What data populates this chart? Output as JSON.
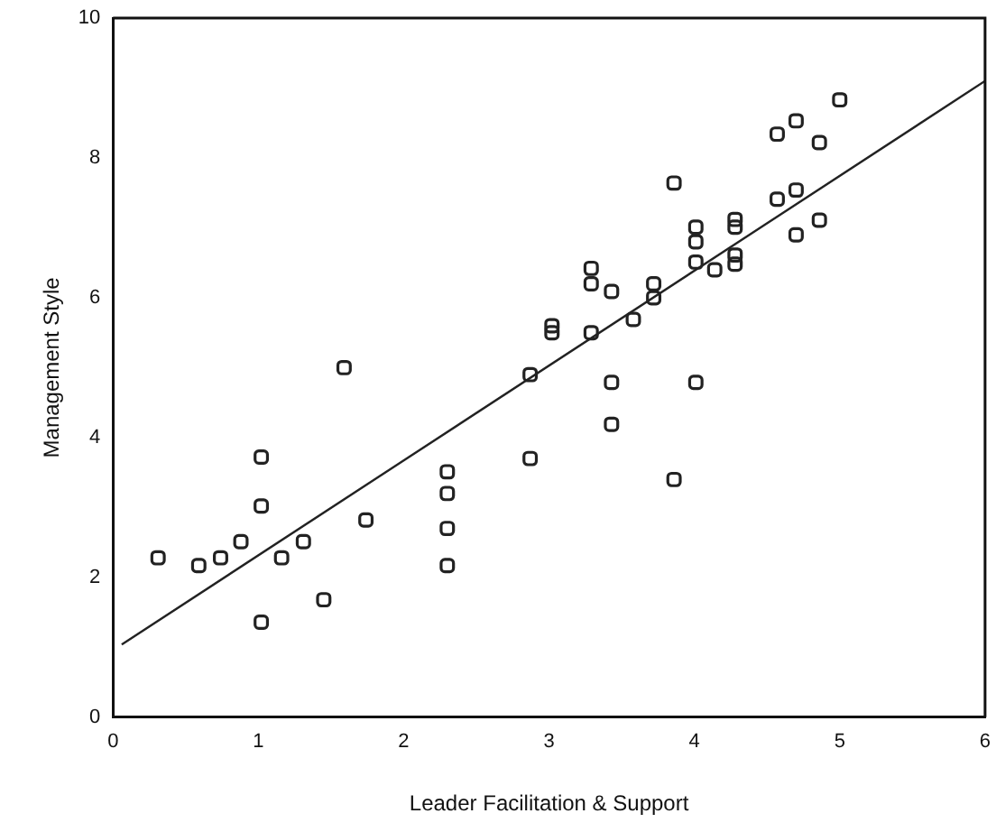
{
  "chart_data": {
    "type": "scatter",
    "xlabel": "Leader Facilitation & Support",
    "ylabel": "Management Style",
    "xlim": [
      0,
      6
    ],
    "xticks": [
      0,
      1,
      2,
      3,
      4,
      5,
      6
    ],
    "ylim": [
      0,
      10
    ],
    "yticks": [
      0,
      2,
      4,
      6,
      8,
      10
    ],
    "grid": false,
    "legend": false,
    "marker": "square",
    "series": [
      {
        "type": "scatter",
        "color": "#222222",
        "x": [
          0.31,
          0.59,
          0.74,
          0.88,
          1.02,
          1.02,
          1.02,
          1.16,
          1.31,
          1.45,
          1.59,
          1.74,
          2.3,
          2.3,
          2.3,
          2.3,
          2.87,
          2.87,
          3.02,
          3.02,
          3.29,
          3.29,
          3.29,
          3.43,
          3.43,
          3.43,
          3.58,
          3.72,
          3.72,
          3.86,
          3.86,
          4.01,
          4.01,
          4.01,
          4.01,
          4.14,
          4.28,
          4.28,
          4.28,
          4.28,
          4.57,
          4.57,
          4.7,
          4.7,
          4.7,
          4.86,
          4.86,
          5.0
        ],
        "values": [
          2.28,
          2.17,
          2.28,
          2.51,
          3.72,
          3.02,
          1.36,
          2.28,
          2.51,
          1.68,
          5.0,
          2.82,
          3.51,
          3.2,
          2.7,
          2.17,
          4.9,
          3.7,
          5.5,
          5.6,
          5.5,
          6.42,
          6.2,
          6.09,
          4.79,
          4.19,
          5.69,
          6.2,
          6.0,
          7.64,
          3.4,
          7.01,
          6.8,
          6.51,
          4.79,
          6.4,
          7.12,
          7.01,
          6.61,
          6.48,
          8.34,
          7.41,
          8.53,
          7.54,
          6.9,
          8.22,
          7.11,
          8.83
        ]
      },
      {
        "type": "line",
        "color": "#222222",
        "x": [
          0.06,
          6
        ],
        "values": [
          1.04,
          9.1
        ],
        "marker": "none"
      }
    ]
  }
}
